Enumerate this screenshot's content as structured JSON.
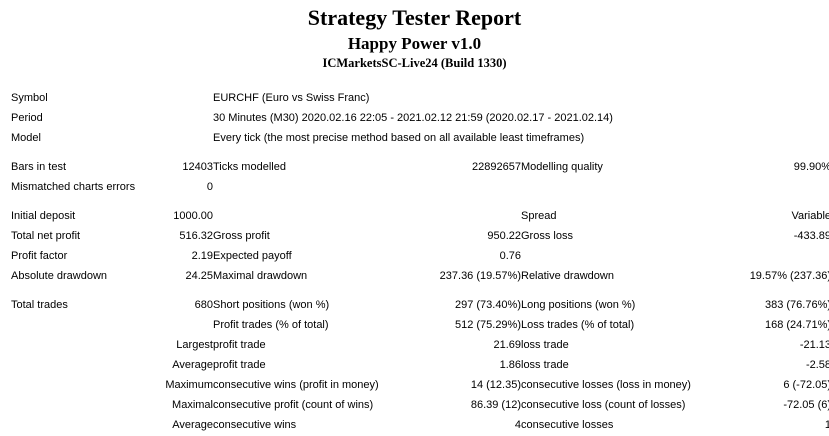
{
  "header": {
    "title": "Strategy Tester Report",
    "strategy": "Happy Power v1.0",
    "server": "ICMarketsSC-Live24 (Build 1330)"
  },
  "report": {
    "sections": [
      {
        "name": "settings",
        "rows": [
          [
            "Symbol",
            "EURCHF (Euro vs Swiss Franc)"
          ],
          [
            "Period",
            "30 Minutes (M30) 2020.02.16 22:05 - 2021.02.12 21:59 (2020.02.17 - 2021.02.14)"
          ],
          [
            "Model",
            "Every tick (the most precise method based on all available least timeframes)"
          ]
        ]
      },
      {
        "name": "modelling",
        "rows": [
          [
            "Bars in test",
            "12403",
            "Ticks modelled",
            "22892657",
            "Modelling quality",
            "99.90%"
          ],
          [
            "Mismatched charts errors",
            "0",
            "",
            "",
            "",
            ""
          ]
        ]
      },
      {
        "name": "profit",
        "rows": [
          [
            "Initial deposit",
            "1000.00",
            "",
            "",
            "Spread",
            "Variable"
          ],
          [
            "Total net profit",
            "516.32",
            "Gross profit",
            "950.22",
            "Gross loss",
            "-433.89"
          ],
          [
            "Profit factor",
            "2.19",
            "Expected payoff",
            "0.76",
            "",
            ""
          ],
          [
            "Absolute drawdown",
            "24.25",
            "Maximal drawdown",
            "237.36 (19.57%)",
            "Relative drawdown",
            "19.57% (237.36)"
          ]
        ]
      },
      {
        "name": "trades",
        "rows": [
          [
            "Total trades",
            "680",
            "Short positions (won %)",
            "297 (73.40%)",
            "Long positions (won %)",
            "383 (76.76%)"
          ],
          [
            "",
            "",
            "Profit trades (% of total)",
            "512 (75.29%)",
            "Loss trades (% of total)",
            "168 (24.71%)"
          ],
          [
            "",
            "Largest",
            "profit trade",
            "21.69",
            "loss trade",
            "-21.13"
          ],
          [
            "",
            "Average",
            "profit trade",
            "1.86",
            "loss trade",
            "-2.58"
          ],
          [
            "",
            "Maximum",
            "consecutive wins (profit in money)",
            "14 (12.35)",
            "consecutive losses (loss in money)",
            "6 (-72.05)"
          ],
          [
            "",
            "Maximal",
            "consecutive profit (count of wins)",
            "86.39 (12)",
            "consecutive loss (count of losses)",
            "-72.05 (6)"
          ],
          [
            "",
            "Average",
            "consecutive wins",
            "4",
            "consecutive losses",
            "1"
          ]
        ]
      }
    ]
  }
}
